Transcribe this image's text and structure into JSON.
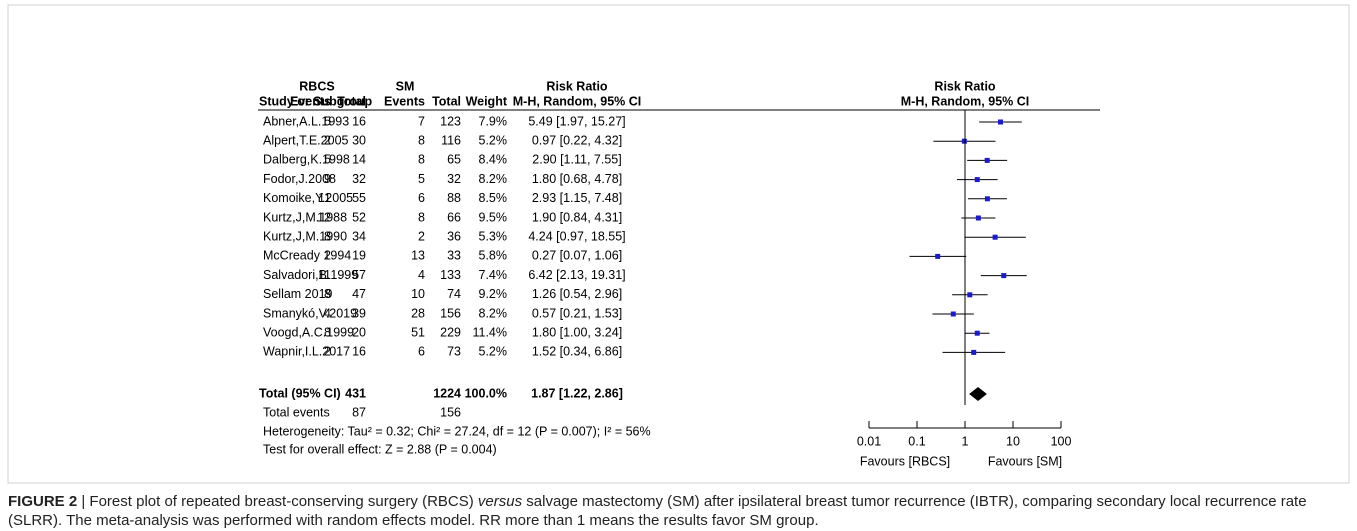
{
  "chart_data": {
    "type": "forest",
    "group_headers": [
      "RBCS",
      "SM",
      "Risk Ratio",
      "Risk Ratio"
    ],
    "column_headers": [
      "Study or Subgroup",
      "Events",
      "Total",
      "Events",
      "Total",
      "Weight",
      "M-H, Random, 95% CI"
    ],
    "plot_header": "M-H, Random, 95% CI",
    "studies": [
      "Abner,A.L.1993",
      "Alpert,T.E.2005",
      "Dalberg,K.1998",
      "Fodor,J.2008",
      "Komoike,Y.2005",
      "Kurtz,J,M.1988",
      "Kurtz,J,M.1990",
      "McCready 1994",
      "Salvadori,B.1999",
      "Sellam 2019",
      "Smanykó,V.2019",
      "Voogd,A.C.1999",
      "Wapnir,I.L.2017"
    ],
    "rbcs_events": [
      5,
      2,
      5,
      9,
      11,
      12,
      8,
      2,
      11,
      8,
      4,
      8,
      2
    ],
    "rbcs_total": [
      16,
      30,
      14,
      32,
      55,
      52,
      34,
      19,
      57,
      47,
      39,
      20,
      16
    ],
    "sm_events": [
      7,
      8,
      8,
      5,
      6,
      8,
      2,
      13,
      4,
      10,
      28,
      51,
      6
    ],
    "sm_total": [
      123,
      116,
      65,
      32,
      88,
      66,
      36,
      33,
      133,
      74,
      156,
      229,
      73
    ],
    "weights": [
      "7.9%",
      "5.2%",
      "8.4%",
      "8.2%",
      "8.5%",
      "9.5%",
      "5.3%",
      "5.8%",
      "7.4%",
      "9.2%",
      "8.2%",
      "11.4%",
      "5.2%"
    ],
    "values": [
      5.49,
      0.97,
      2.9,
      1.8,
      2.93,
      1.9,
      4.24,
      0.27,
      6.42,
      1.26,
      0.57,
      1.8,
      1.52
    ],
    "lower": [
      1.97,
      0.22,
      1.11,
      0.68,
      1.15,
      0.84,
      0.97,
      0.07,
      2.13,
      0.54,
      0.21,
      1.0,
      0.34
    ],
    "upper": [
      15.27,
      4.32,
      7.55,
      4.78,
      7.48,
      4.31,
      18.55,
      1.06,
      19.31,
      2.96,
      1.53,
      3.24,
      6.86
    ],
    "value_labels": [
      "5.49 [1.97, 15.27]",
      "0.97 [0.22, 4.32]",
      "2.90 [1.11, 7.55]",
      "1.80 [0.68, 4.78]",
      "2.93 [1.15, 7.48]",
      "1.90 [0.84, 4.31]",
      "4.24 [0.97, 18.55]",
      "0.27 [0.07, 1.06]",
      "6.42 [2.13, 19.31]",
      "1.26 [0.54, 2.96]",
      "0.57 [0.21, 1.53]",
      "1.80 [1.00, 3.24]",
      "1.52 [0.34, 6.86]"
    ],
    "total": {
      "label": "Total (95% CI)",
      "rbcs_total": 431,
      "sm_total": 1224,
      "weight": "100.0%",
      "value": 1.87,
      "lower": 1.22,
      "upper": 2.86,
      "value_label": "1.87 [1.22, 2.86]"
    },
    "total_events": {
      "label": "Total events",
      "rbcs": 87,
      "sm": 156
    },
    "heterogeneity": "Heterogeneity: Tau² = 0.32; Chi² = 27.24, df = 12 (P = 0.007); I² = 56%",
    "overall_effect": "Test for overall effect: Z = 2.88 (P = 0.004)",
    "xlim": [
      0.01,
      100
    ],
    "xticks": [
      0.01,
      0.1,
      1,
      10,
      100
    ],
    "log_x": true,
    "favours": [
      "Favours [RBCS]",
      "Favours [SM]"
    ],
    "color": "#1a1ad0"
  },
  "caption": {
    "label": "FIGURE 2",
    "segments": [
      " | Forest plot of repeated breast-conserving surgery (RBCS) ",
      "versus",
      " salvage mastectomy (SM) after ipsilateral breast tumor recurrence (IBTR), comparing secondary local recurrence rate (SLRR). The meta-analysis was performed with random effects model. RR more than 1 means the results favor SM group."
    ]
  }
}
